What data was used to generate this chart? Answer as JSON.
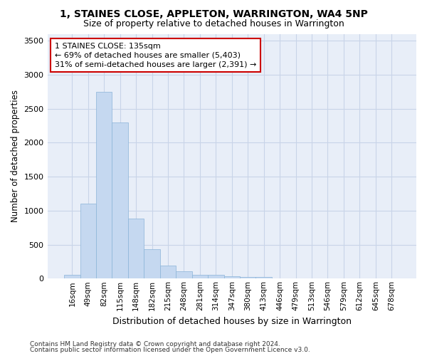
{
  "title1": "1, STAINES CLOSE, APPLETON, WARRINGTON, WA4 5NP",
  "title2": "Size of property relative to detached houses in Warrington",
  "xlabel": "Distribution of detached houses by size in Warrington",
  "ylabel": "Number of detached properties",
  "footnote1": "Contains HM Land Registry data © Crown copyright and database right 2024.",
  "footnote2": "Contains public sector information licensed under the Open Government Licence v3.0.",
  "categories": [
    "16sqm",
    "49sqm",
    "82sqm",
    "115sqm",
    "148sqm",
    "182sqm",
    "215sqm",
    "248sqm",
    "281sqm",
    "314sqm",
    "347sqm",
    "380sqm",
    "413sqm",
    "446sqm",
    "479sqm",
    "513sqm",
    "546sqm",
    "579sqm",
    "612sqm",
    "645sqm",
    "678sqm"
  ],
  "values": [
    50,
    1100,
    2750,
    2300,
    880,
    430,
    190,
    110,
    55,
    50,
    30,
    25,
    20,
    3,
    2,
    1,
    1,
    1,
    1,
    1,
    0
  ],
  "bar_color": "#c5d8f0",
  "bar_edge_color": "#8ab4d8",
  "grid_color": "#c8d4e8",
  "bg_color": "#e8eef8",
  "annotation_text": "1 STAINES CLOSE: 135sqm\n← 69% of detached houses are smaller (5,403)\n31% of semi-detached houses are larger (2,391) →",
  "annotation_box_color": "white",
  "annotation_edge_color": "#cc0000",
  "ylim": [
    0,
    3600
  ],
  "yticks": [
    0,
    500,
    1000,
    1500,
    2000,
    2500,
    3000,
    3500
  ]
}
